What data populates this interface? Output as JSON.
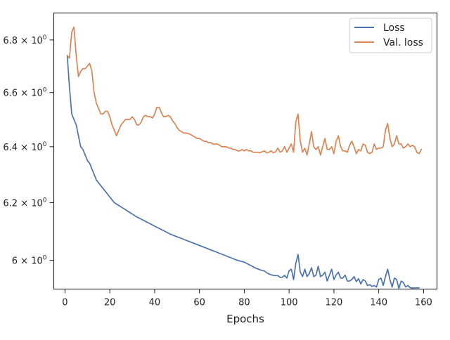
{
  "chart_data": {
    "type": "line",
    "xlabel": "Epochs",
    "ylabel": "",
    "xlim": [
      -5,
      166
    ],
    "ylim_log": [
      5.903,
      6.905
    ],
    "yscale": "log",
    "grid": false,
    "legend_position": "top-right",
    "x_ticks": [
      0,
      20,
      40,
      60,
      80,
      100,
      120,
      140,
      160
    ],
    "x_tick_labels": [
      "0",
      "20",
      "40",
      "60",
      "80",
      "100",
      "120",
      "140",
      "160"
    ],
    "y_ticks": [
      6.0,
      6.2,
      6.4,
      6.6,
      6.8
    ],
    "y_tick_labels": [
      {
        "base": "6",
        "prefix": "",
        "mult": "× 10",
        "exp": "0"
      },
      {
        "base": "6.2",
        "prefix": "",
        "mult": "× 10",
        "exp": "0"
      },
      {
        "base": "6.4",
        "prefix": "",
        "mult": "× 10",
        "exp": "0"
      },
      {
        "base": "6.6",
        "prefix": "",
        "mult": "× 10",
        "exp": "0"
      },
      {
        "base": "6.8",
        "prefix": "",
        "mult": "× 10",
        "exp": "0"
      }
    ],
    "series": [
      {
        "name": "Loss",
        "color": "#4c72b0",
        "points": [
          [
            1,
            6.74
          ],
          [
            2,
            6.62
          ],
          [
            3,
            6.52
          ],
          [
            4,
            6.5
          ],
          [
            5,
            6.48
          ],
          [
            6,
            6.44
          ],
          [
            7,
            6.4
          ],
          [
            8,
            6.39
          ],
          [
            9,
            6.37
          ],
          [
            10,
            6.35
          ],
          [
            11,
            6.34
          ],
          [
            12,
            6.32
          ],
          [
            13,
            6.3
          ],
          [
            14,
            6.28
          ],
          [
            15,
            6.27
          ],
          [
            16,
            6.26
          ],
          [
            17,
            6.25
          ],
          [
            18,
            6.24
          ],
          [
            19,
            6.23
          ],
          [
            20,
            6.22
          ],
          [
            21,
            6.21
          ],
          [
            22,
            6.2
          ],
          [
            23,
            6.195
          ],
          [
            24,
            6.19
          ],
          [
            25,
            6.185
          ],
          [
            26,
            6.18
          ],
          [
            27,
            6.175
          ],
          [
            28,
            6.17
          ],
          [
            29,
            6.165
          ],
          [
            30,
            6.16
          ],
          [
            31,
            6.155
          ],
          [
            32,
            6.15
          ],
          [
            33,
            6.146
          ],
          [
            34,
            6.142
          ],
          [
            35,
            6.138
          ],
          [
            36,
            6.134
          ],
          [
            37,
            6.13
          ],
          [
            38,
            6.126
          ],
          [
            39,
            6.122
          ],
          [
            40,
            6.118
          ],
          [
            41,
            6.114
          ],
          [
            42,
            6.11
          ],
          [
            43,
            6.106
          ],
          [
            44,
            6.102
          ],
          [
            45,
            6.098
          ],
          [
            46,
            6.094
          ],
          [
            47,
            6.09
          ],
          [
            48,
            6.087
          ],
          [
            49,
            6.084
          ],
          [
            50,
            6.081
          ],
          [
            51,
            6.078
          ],
          [
            52,
            6.075
          ],
          [
            53,
            6.072
          ],
          [
            54,
            6.069
          ],
          [
            55,
            6.066
          ],
          [
            56,
            6.063
          ],
          [
            57,
            6.06
          ],
          [
            58,
            6.057
          ],
          [
            59,
            6.054
          ],
          [
            60,
            6.051
          ],
          [
            61,
            6.048
          ],
          [
            62,
            6.045
          ],
          [
            63,
            6.042
          ],
          [
            64,
            6.039
          ],
          [
            65,
            6.036
          ],
          [
            66,
            6.033
          ],
          [
            67,
            6.03
          ],
          [
            68,
            6.027
          ],
          [
            69,
            6.024
          ],
          [
            70,
            6.021
          ],
          [
            71,
            6.018
          ],
          [
            72,
            6.015
          ],
          [
            73,
            6.012
          ],
          [
            74,
            6.009
          ],
          [
            75,
            6.006
          ],
          [
            76,
            6.003
          ],
          [
            77,
            6.0
          ],
          [
            78,
            5.998
          ],
          [
            79,
            5.996
          ],
          [
            80,
            5.994
          ],
          [
            81,
            5.99
          ],
          [
            82,
            5.986
          ],
          [
            83,
            5.982
          ],
          [
            84,
            5.978
          ],
          [
            85,
            5.974
          ],
          [
            86,
            5.971
          ],
          [
            87,
            5.968
          ],
          [
            88,
            5.966
          ],
          [
            89,
            5.964
          ],
          [
            90,
            5.958
          ],
          [
            91,
            5.954
          ],
          [
            92,
            5.951
          ],
          [
            93,
            5.949
          ],
          [
            94,
            5.948
          ],
          [
            95,
            5.948
          ],
          [
            96,
            5.942
          ],
          [
            97,
            5.943
          ],
          [
            98,
            5.949
          ],
          [
            99,
            5.94
          ],
          [
            100,
            5.965
          ],
          [
            101,
            5.97
          ],
          [
            102,
            5.935
          ],
          [
            103,
            5.99
          ],
          [
            104,
            6.02
          ],
          [
            105,
            5.96
          ],
          [
            106,
            5.945
          ],
          [
            107,
            5.97
          ],
          [
            108,
            5.945
          ],
          [
            109,
            5.955
          ],
          [
            110,
            5.975
          ],
          [
            111,
            5.945
          ],
          [
            112,
            5.95
          ],
          [
            113,
            5.98
          ],
          [
            114,
            5.945
          ],
          [
            115,
            5.95
          ],
          [
            116,
            5.96
          ],
          [
            117,
            5.93
          ],
          [
            118,
            5.95
          ],
          [
            119,
            5.97
          ],
          [
            120,
            5.935
          ],
          [
            121,
            5.95
          ],
          [
            122,
            5.96
          ],
          [
            123,
            5.94
          ],
          [
            124,
            5.94
          ],
          [
            125,
            5.95
          ],
          [
            126,
            5.93
          ],
          [
            127,
            5.93
          ],
          [
            128,
            5.935
          ],
          [
            129,
            5.945
          ],
          [
            130,
            5.928
          ],
          [
            131,
            5.938
          ],
          [
            132,
            5.92
          ],
          [
            133,
            5.935
          ],
          [
            134,
            5.93
          ],
          [
            135,
            5.915
          ],
          [
            136,
            5.918
          ],
          [
            137,
            5.912
          ],
          [
            138,
            5.915
          ],
          [
            139,
            5.91
          ],
          [
            140,
            5.935
          ],
          [
            141,
            5.94
          ],
          [
            142,
            5.915
          ],
          [
            143,
            5.945
          ],
          [
            144,
            5.97
          ],
          [
            145,
            5.935
          ],
          [
            146,
            5.91
          ],
          [
            147,
            5.94
          ],
          [
            148,
            5.935
          ],
          [
            149,
            5.905
          ],
          [
            150,
            5.93
          ],
          [
            151,
            5.925
          ],
          [
            152,
            5.91
          ],
          [
            153,
            5.915
          ],
          [
            154,
            5.908
          ],
          [
            155,
            5.906
          ],
          [
            156,
            5.907
          ],
          [
            157,
            5.907
          ],
          [
            158,
            5.907
          ]
        ]
      },
      {
        "name": "Val. loss",
        "color": "#dd8452",
        "points": [
          [
            1,
            6.74
          ],
          [
            2,
            6.73
          ],
          [
            3,
            6.83
          ],
          [
            4,
            6.85
          ],
          [
            5,
            6.74
          ],
          [
            6,
            6.66
          ],
          [
            7,
            6.68
          ],
          [
            8,
            6.69
          ],
          [
            9,
            6.69
          ],
          [
            10,
            6.7
          ],
          [
            11,
            6.71
          ],
          [
            12,
            6.68
          ],
          [
            13,
            6.6
          ],
          [
            14,
            6.56
          ],
          [
            15,
            6.54
          ],
          [
            16,
            6.52
          ],
          [
            17,
            6.52
          ],
          [
            18,
            6.53
          ],
          [
            19,
            6.53
          ],
          [
            20,
            6.51
          ],
          [
            21,
            6.48
          ],
          [
            22,
            6.46
          ],
          [
            23,
            6.44
          ],
          [
            24,
            6.46
          ],
          [
            25,
            6.48
          ],
          [
            26,
            6.49
          ],
          [
            27,
            6.5
          ],
          [
            28,
            6.5
          ],
          [
            29,
            6.5
          ],
          [
            30,
            6.51
          ],
          [
            31,
            6.5
          ],
          [
            32,
            6.48
          ],
          [
            33,
            6.48
          ],
          [
            34,
            6.49
          ],
          [
            35,
            6.51
          ],
          [
            36,
            6.515
          ],
          [
            37,
            6.51
          ],
          [
            38,
            6.51
          ],
          [
            39,
            6.505
          ],
          [
            40,
            6.52
          ],
          [
            41,
            6.545
          ],
          [
            42,
            6.545
          ],
          [
            43,
            6.525
          ],
          [
            44,
            6.51
          ],
          [
            45,
            6.51
          ],
          [
            46,
            6.515
          ],
          [
            47,
            6.51
          ],
          [
            48,
            6.495
          ],
          [
            49,
            6.485
          ],
          [
            50,
            6.47
          ],
          [
            51,
            6.46
          ],
          [
            52,
            6.455
          ],
          [
            53,
            6.45
          ],
          [
            54,
            6.45
          ],
          [
            55,
            6.448
          ],
          [
            56,
            6.445
          ],
          [
            57,
            6.44
          ],
          [
            58,
            6.435
          ],
          [
            59,
            6.43
          ],
          [
            60,
            6.43
          ],
          [
            61,
            6.425
          ],
          [
            62,
            6.42
          ],
          [
            63,
            6.42
          ],
          [
            64,
            6.415
          ],
          [
            65,
            6.415
          ],
          [
            66,
            6.41
          ],
          [
            67,
            6.41
          ],
          [
            68,
            6.41
          ],
          [
            69,
            6.405
          ],
          [
            70,
            6.4
          ],
          [
            71,
            6.4
          ],
          [
            72,
            6.4
          ],
          [
            73,
            6.395
          ],
          [
            74,
            6.395
          ],
          [
            75,
            6.39
          ],
          [
            76,
            6.39
          ],
          [
            77,
            6.385
          ],
          [
            78,
            6.385
          ],
          [
            79,
            6.39
          ],
          [
            80,
            6.385
          ],
          [
            81,
            6.39
          ],
          [
            82,
            6.385
          ],
          [
            83,
            6.385
          ],
          [
            84,
            6.38
          ],
          [
            85,
            6.38
          ],
          [
            86,
            6.38
          ],
          [
            87,
            6.378
          ],
          [
            88,
            6.382
          ],
          [
            89,
            6.385
          ],
          [
            90,
            6.378
          ],
          [
            91,
            6.38
          ],
          [
            92,
            6.385
          ],
          [
            93,
            6.378
          ],
          [
            94,
            6.382
          ],
          [
            95,
            6.395
          ],
          [
            96,
            6.38
          ],
          [
            97,
            6.385
          ],
          [
            98,
            6.4
          ],
          [
            99,
            6.38
          ],
          [
            100,
            6.395
          ],
          [
            101,
            6.41
          ],
          [
            102,
            6.38
          ],
          [
            103,
            6.49
          ],
          [
            104,
            6.52
          ],
          [
            105,
            6.42
          ],
          [
            106,
            6.38
          ],
          [
            107,
            6.395
          ],
          [
            108,
            6.37
          ],
          [
            109,
            6.41
          ],
          [
            110,
            6.455
          ],
          [
            111,
            6.4
          ],
          [
            112,
            6.39
          ],
          [
            113,
            6.4
          ],
          [
            114,
            6.37
          ],
          [
            115,
            6.4
          ],
          [
            116,
            6.43
          ],
          [
            117,
            6.39
          ],
          [
            118,
            6.39
          ],
          [
            119,
            6.4
          ],
          [
            120,
            6.375
          ],
          [
            121,
            6.42
          ],
          [
            122,
            6.44
          ],
          [
            123,
            6.4
          ],
          [
            124,
            6.385
          ],
          [
            125,
            6.385
          ],
          [
            126,
            6.38
          ],
          [
            127,
            6.405
          ],
          [
            128,
            6.42
          ],
          [
            129,
            6.4
          ],
          [
            130,
            6.375
          ],
          [
            131,
            6.39
          ],
          [
            132,
            6.385
          ],
          [
            133,
            6.41
          ],
          [
            134,
            6.405
          ],
          [
            135,
            6.38
          ],
          [
            136,
            6.375
          ],
          [
            137,
            6.38
          ],
          [
            138,
            6.41
          ],
          [
            139,
            6.39
          ],
          [
            140,
            6.395
          ],
          [
            141,
            6.395
          ],
          [
            142,
            6.4
          ],
          [
            143,
            6.46
          ],
          [
            144,
            6.485
          ],
          [
            145,
            6.43
          ],
          [
            146,
            6.4
          ],
          [
            147,
            6.41
          ],
          [
            148,
            6.44
          ],
          [
            149,
            6.41
          ],
          [
            150,
            6.41
          ],
          [
            151,
            6.395
          ],
          [
            152,
            6.4
          ],
          [
            153,
            6.41
          ],
          [
            154,
            6.4
          ],
          [
            155,
            6.405
          ],
          [
            156,
            6.4
          ],
          [
            157,
            6.38
          ],
          [
            158,
            6.375
          ],
          [
            159,
            6.39
          ]
        ]
      }
    ]
  }
}
